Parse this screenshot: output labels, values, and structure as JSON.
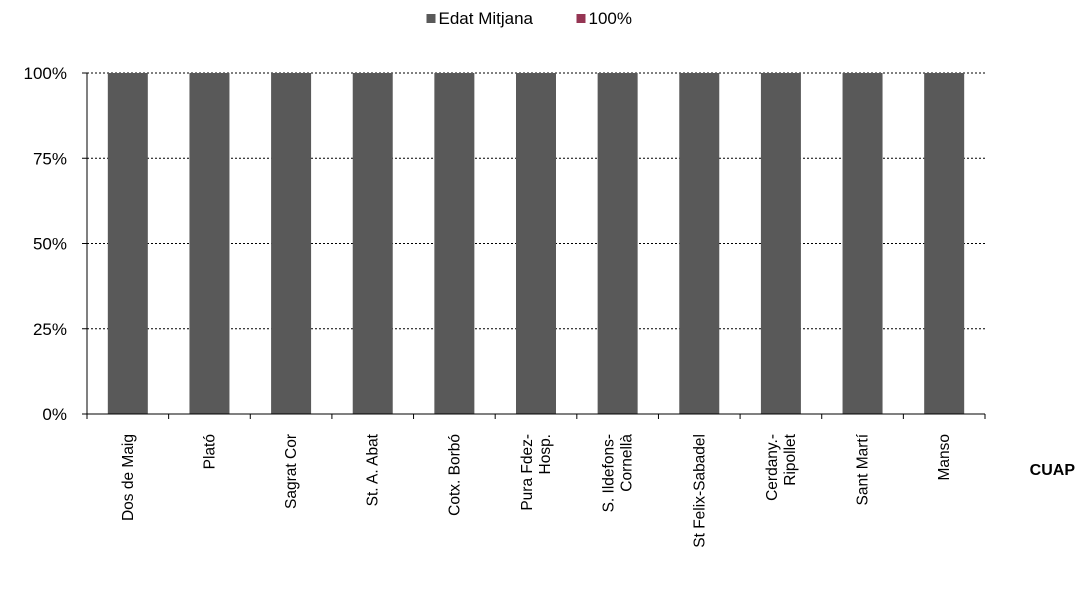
{
  "chart_data": {
    "type": "bar",
    "stacked": "percent",
    "title": "",
    "xlabel": "CUAP",
    "ylabel": "",
    "ylim": [
      0,
      100
    ],
    "yticks": [
      "0%",
      "25%",
      "50%",
      "75%",
      "100%"
    ],
    "grid": true,
    "legend_position": "top",
    "categories": [
      [
        "Dos de Maig"
      ],
      [
        "Plató"
      ],
      [
        "Sagrat Cor"
      ],
      [
        "St. A. Abat"
      ],
      [
        "Cotx. Borbó"
      ],
      [
        "Pura Fdez-",
        "Hosp."
      ],
      [
        "S. Ildefons-",
        "Cornellà"
      ],
      [
        "St Felix-Sabadel"
      ],
      [
        "Cerdany.-",
        "Ripollet"
      ],
      [
        "Sant Martí"
      ],
      [
        "Manso"
      ]
    ],
    "series": [
      {
        "name": "Edat Mitjana",
        "color": "#595959",
        "values": [
          100,
          100,
          100,
          100,
          100,
          100,
          100,
          100,
          100,
          100,
          100
        ]
      },
      {
        "name": "100%",
        "color": "#953553",
        "values": [
          0,
          0,
          0,
          0,
          0,
          0,
          0,
          0,
          0,
          0,
          0
        ]
      }
    ]
  }
}
